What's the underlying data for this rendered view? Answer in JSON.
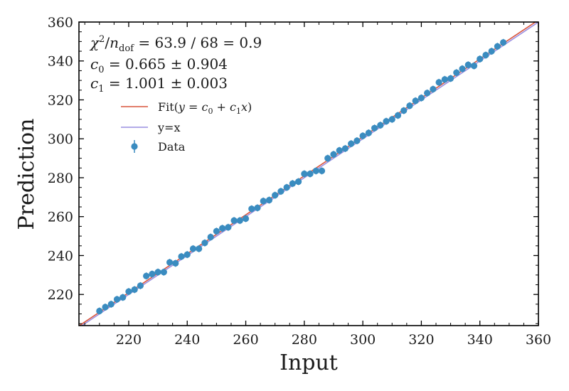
{
  "chart_data": {
    "type": "scatter",
    "xlabel": "Input",
    "ylabel": "Prediction",
    "xlim": [
      203,
      360
    ],
    "ylim": [
      204,
      360
    ],
    "x_ticks": [
      220,
      240,
      260,
      280,
      300,
      320,
      340,
      360
    ],
    "y_ticks": [
      220,
      240,
      260,
      280,
      300,
      320,
      340,
      360
    ],
    "stats": {
      "chi2_prefix": "χ",
      "chi2_sup": "2",
      "chi2_slash": "/",
      "chi2_n": "n",
      "chi2_sub": "dof",
      "chi2_value": " = 63.9 / 68 = 0.9",
      "c0_name": "c",
      "c0_sub": "0",
      "c0_value": " = 0.665 ± 0.904",
      "c1_name": "c",
      "c1_sub": "1",
      "c1_value": " = 1.001 ± 0.003"
    },
    "legend": {
      "fit_prefix": "Fit(",
      "fit_formula": "y = c",
      "fit_sub0": "0",
      "fit_mid": " + c",
      "fit_sub1": "1",
      "fit_x": "x",
      "fit_suffix": ")",
      "identity": "y=x",
      "data": "Data"
    },
    "colors": {
      "fit": "#d9543a",
      "identity": "#9a8fe0",
      "data": "#3a8cc0"
    },
    "fit": {
      "c0": 0.665,
      "c1": 1.001
    },
    "series": [
      {
        "name": "Data",
        "x": [
          210,
          212,
          214,
          216,
          218,
          220,
          222,
          224,
          226,
          228,
          230,
          232,
          234,
          236,
          238,
          240,
          242,
          244,
          246,
          248,
          250,
          252,
          254,
          256,
          258,
          260,
          262,
          264,
          266,
          268,
          270,
          272,
          274,
          276,
          278,
          280,
          282,
          284,
          286,
          288,
          290,
          292,
          294,
          296,
          298,
          300,
          302,
          304,
          306,
          308,
          310,
          312,
          314,
          316,
          318,
          320,
          322,
          324,
          326,
          328,
          330,
          332,
          334,
          336,
          338,
          340,
          342,
          344,
          346,
          348
        ],
        "y": [
          211.5,
          213.5,
          215,
          217.5,
          218.5,
          221.5,
          222.5,
          224.5,
          229.5,
          230.5,
          231.5,
          231.5,
          236.5,
          236,
          239.5,
          240.5,
          243.5,
          243.5,
          246.5,
          249.5,
          252.5,
          254,
          254.5,
          258,
          258,
          259,
          264,
          264.5,
          268,
          268.5,
          271,
          273,
          275,
          277,
          278,
          282,
          282,
          283.5,
          283.5,
          290,
          292,
          294,
          295,
          297.5,
          299,
          301.5,
          303,
          305.5,
          307,
          309,
          310,
          312,
          314.5,
          317,
          319.5,
          321,
          323.5,
          325.5,
          329,
          330.5,
          331,
          334,
          336,
          338,
          337.5,
          341,
          343,
          345,
          347.5,
          349.5
        ]
      }
    ]
  }
}
